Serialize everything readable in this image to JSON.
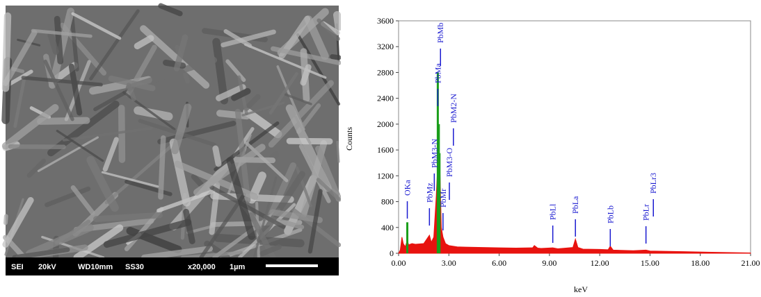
{
  "sem_image": {
    "labels": [
      "SEI",
      "20kV",
      "WD10mm",
      "SS30",
      "x20,000",
      "1µm"
    ]
  },
  "chart_data": {
    "type": "area",
    "x_label": "keV",
    "y_label": "Counts",
    "xlim": [
      0,
      21
    ],
    "ylim": [
      0,
      3600
    ],
    "xticks": [
      {
        "value": 0,
        "label": "0.00"
      },
      {
        "value": 3,
        "label": "3.00"
      },
      {
        "value": 6,
        "label": "6.00"
      },
      {
        "value": 9,
        "label": "9.00"
      },
      {
        "value": 12,
        "label": "12.00"
      },
      {
        "value": 15,
        "label": "15.00"
      },
      {
        "value": 18,
        "label": "18.00"
      },
      {
        "value": 21,
        "label": "21.00"
      }
    ],
    "yticks": [
      0,
      400,
      800,
      1200,
      1600,
      2000,
      2400,
      2800,
      3200,
      3600
    ],
    "series": [
      {
        "color": "#e8130f",
        "x": [
          0,
          0.1,
          0.2,
          0.28,
          0.4,
          0.52,
          0.6,
          0.8,
          1.0,
          1.5,
          1.84,
          1.95,
          2.1,
          2.25,
          2.34,
          2.44,
          2.55,
          2.65,
          2.8,
          3.0,
          3.5,
          4,
          5,
          6,
          7,
          8,
          8.1,
          8.3,
          8.5,
          9.2,
          9.5,
          10.4,
          10.55,
          10.7,
          11,
          12,
          12.5,
          12.63,
          12.8,
          14,
          14.76,
          15,
          17,
          19,
          21
        ],
        "values": [
          0,
          50,
          250,
          150,
          100,
          200,
          130,
          150,
          140,
          150,
          280,
          170,
          250,
          900,
          1400,
          1550,
          400,
          250,
          150,
          120,
          100,
          95,
          90,
          85,
          80,
          85,
          120,
          80,
          75,
          85,
          70,
          90,
          220,
          90,
          65,
          60,
          55,
          110,
          50,
          40,
          50,
          35,
          25,
          15,
          5
        ]
      },
      {
        "color": "#1a9e1a",
        "x": [
          0.52,
          2.34,
          2.4,
          2.44
        ],
        "values": [
          480,
          2800,
          2000,
          1550
        ]
      }
    ],
    "annotations": [
      {
        "label": "OKa",
        "x": 0.52,
        "y": 806
      },
      {
        "label": "PbMz",
        "x": 1.84,
        "y": 698
      },
      {
        "label": "PbM3-N",
        "x": 2.13,
        "y": 1236
      },
      {
        "label": "PbMa",
        "x": 2.34,
        "y": 2547
      },
      {
        "label": "PbMb",
        "x": 2.5,
        "y": 3170
      },
      {
        "label": "PbMr",
        "x": 2.65,
        "y": 623
      },
      {
        "label": "PbM3-O",
        "x": 3.03,
        "y": 1096
      },
      {
        "label": "PbM2-N",
        "x": 3.27,
        "y": 1935
      },
      {
        "label": "PbLl",
        "x": 9.2,
        "y": 430
      },
      {
        "label": "PbLa",
        "x": 10.55,
        "y": 527
      },
      {
        "label": "PbLb",
        "x": 12.63,
        "y": 376
      },
      {
        "label": "PbLr",
        "x": 14.76,
        "y": 419
      },
      {
        "label": "PbLr3",
        "x": 15.2,
        "y": 838
      }
    ],
    "annotation_color": "#1a1ad0"
  }
}
